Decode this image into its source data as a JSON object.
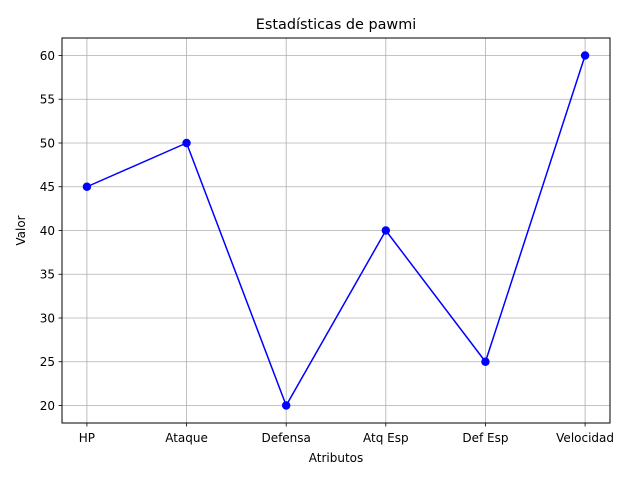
{
  "chart_data": {
    "type": "line",
    "title": "Estadísticas de pawmi",
    "xlabel": "Atributos",
    "ylabel": "Valor",
    "categories": [
      "HP",
      "Ataque",
      "Defensa",
      "Atq Esp",
      "Def Esp",
      "Velocidad"
    ],
    "series": [
      {
        "values": [
          45,
          50,
          20,
          40,
          25,
          60
        ],
        "color": "#0000ff",
        "marker": "circle"
      }
    ],
    "ylim": [
      18,
      62
    ],
    "yticks": [
      20,
      25,
      30,
      35,
      40,
      45,
      50,
      55,
      60
    ],
    "grid": true,
    "legend": "none"
  }
}
